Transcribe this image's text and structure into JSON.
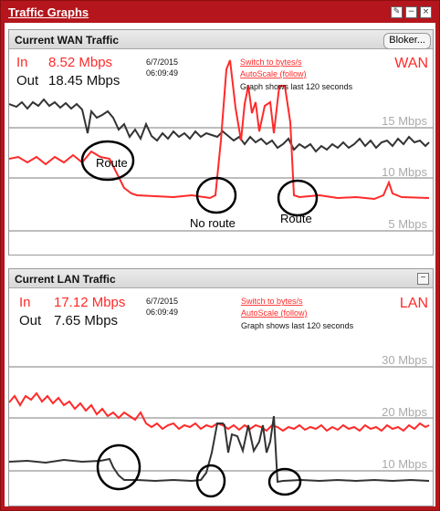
{
  "window": {
    "title": "Traffic Graphs"
  },
  "wan": {
    "heading": "Current WAN Traffic",
    "blocker_label": "Bloker...",
    "in_label": "In",
    "in_value": "8.52 Mbps",
    "out_label": "Out",
    "out_value": "18.45 Mbps",
    "date": "6/7/2015",
    "time": "06:09:49",
    "switch_link": "Switch to bytes/s",
    "autoscale_link": "AutoScale (follow)",
    "note": "Graph shows last 120 seconds",
    "iface": "WAN",
    "ticks": [
      "15 Mbps",
      "10 Mbps",
      "5 Mbps"
    ],
    "annotations": [
      "Route",
      "No route",
      "Route"
    ],
    "colors": {
      "in": "#ff2a2a",
      "out": "#333333",
      "grid": "#bdbdbd"
    }
  },
  "lan": {
    "heading": "Current LAN Traffic",
    "min_label": "−",
    "in_label": "In",
    "in_value": "17.12 Mbps",
    "out_label": "Out",
    "out_value": "7.65 Mbps",
    "date": "6/7/2015",
    "time": "06:09:49",
    "switch_link": "Switch to bytes/s",
    "autoscale_link": "AutoScale (follow)",
    "note": "Graph shows last 120 seconds",
    "iface": "LAN",
    "ticks": [
      "30 Mbps",
      "20 Mbps",
      "10 Mbps"
    ],
    "colors": {
      "in": "#ff2a2a",
      "out": "#333333",
      "grid": "#bdbdbd"
    }
  }
}
